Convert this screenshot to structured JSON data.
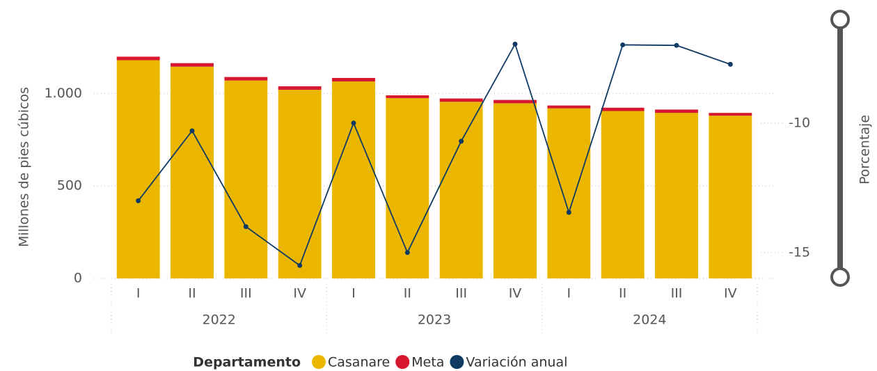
{
  "chart_data": {
    "type": "bar",
    "categories": [
      "I",
      "II",
      "III",
      "IV",
      "I",
      "II",
      "III",
      "IV",
      "I",
      "II",
      "III",
      "IV"
    ],
    "year_groups": [
      "2022",
      "2023",
      "2024"
    ],
    "y_label": "Millones de pies cúbicos",
    "y2_label": "Porcentaje",
    "legend_title": "Departamento",
    "stacked": true,
    "series": [
      {
        "name": "Casanare",
        "color": "#EBB600",
        "type": "bar",
        "values": [
          1180,
          1145,
          1070,
          1020,
          1065,
          975,
          955,
          947,
          920,
          905,
          895,
          880
        ]
      },
      {
        "name": "Meta",
        "color": "#D7172F",
        "type": "bar",
        "values": [
          19,
          19,
          19,
          19,
          19,
          15,
          18,
          18,
          15,
          18,
          18,
          15
        ]
      },
      {
        "name": "Variación anual",
        "color": "#0E3A63",
        "type": "line",
        "axis": "y2",
        "values": [
          -13.0,
          -10.3,
          -14.0,
          -15.5,
          -10.0,
          -15.0,
          -10.7,
          -6.95,
          -13.45,
          -6.98,
          -7.0,
          -7.73
        ]
      }
    ],
    "ylim": [
      0,
      1400
    ],
    "yticks": [
      0,
      500,
      {
        "value": 1000,
        "label": "1.000"
      }
    ],
    "y2lim": [
      -16,
      -6
    ],
    "y2ticks": [
      -15,
      -10
    ],
    "grid": true
  }
}
